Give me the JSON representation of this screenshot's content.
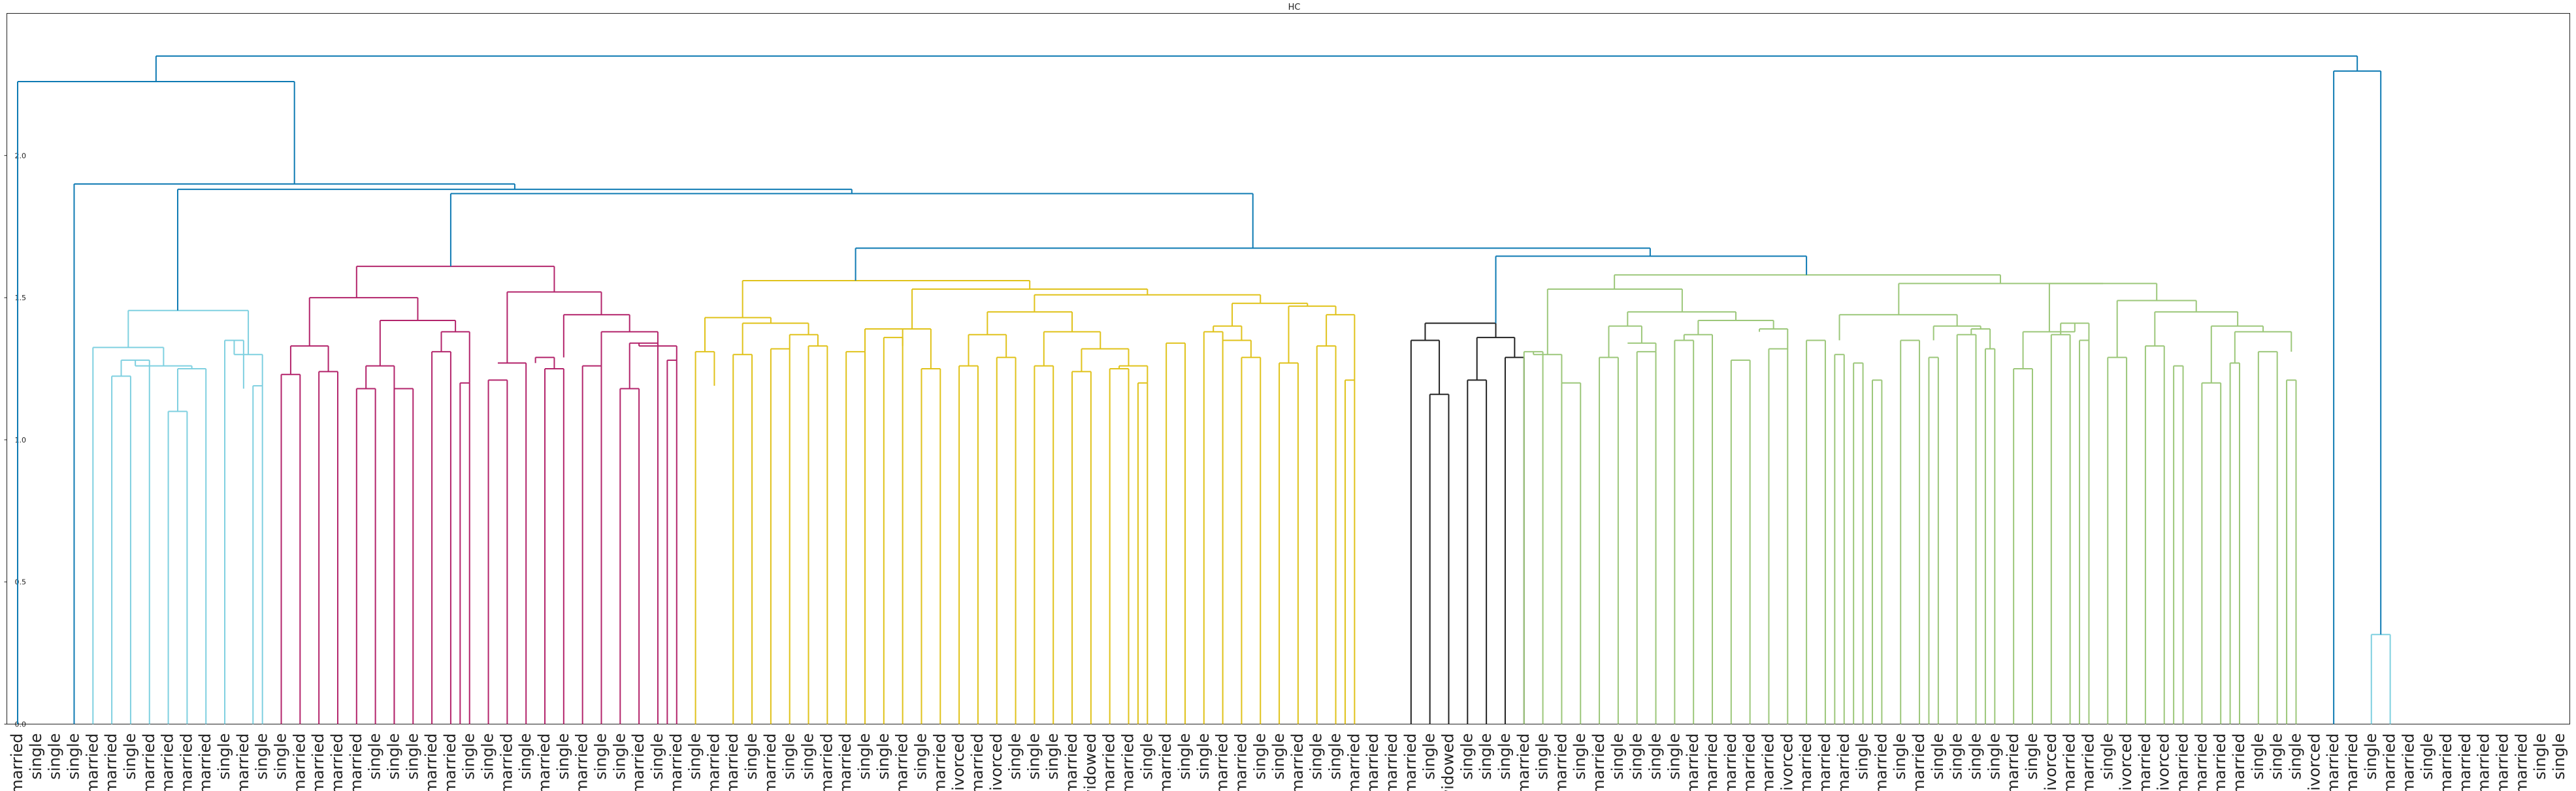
{
  "chart_data": {
    "type": "dendrogram",
    "title": "HC",
    "xlabel": "",
    "ylabel": "",
    "ylim": [
      0,
      2.5
    ],
    "yticks": [
      "0.0",
      "0.5",
      "1.0",
      "1.5",
      "2.0"
    ],
    "leaf_labels": [
      "married",
      "single",
      "single",
      "single",
      "married",
      "married",
      "single",
      "married",
      "married",
      "married",
      "married",
      "single",
      "married",
      "single",
      "single",
      "married",
      "married",
      "married",
      "married",
      "single",
      "single",
      "single",
      "married",
      "married",
      "single",
      "single",
      "married",
      "single",
      "married",
      "single",
      "married",
      "single",
      "single",
      "married",
      "single",
      "married",
      "single",
      "married",
      "married",
      "single",
      "married",
      "single",
      "single",
      "married",
      "married",
      "single",
      "single",
      "married",
      "single",
      "married",
      "divorced",
      "married",
      "divorced",
      "single",
      "single",
      "single",
      "married",
      "widowed",
      "married",
      "married",
      "single",
      "married",
      "single",
      "single",
      "married",
      "married",
      "single",
      "single",
      "married",
      "single",
      "single",
      "married",
      "married",
      "married",
      "married",
      "single",
      "widowed",
      "single",
      "single",
      "single",
      "married",
      "single",
      "married",
      "single",
      "married",
      "single",
      "single",
      "single",
      "single",
      "married",
      "married",
      "married",
      "married",
      "married",
      "divorced",
      "married",
      "married",
      "married",
      "single",
      "married",
      "single",
      "married",
      "single",
      "single",
      "single",
      "single",
      "married",
      "single",
      "divorced",
      "married",
      "married",
      "single",
      "divorced",
      "married",
      "divorced",
      "married",
      "married",
      "married",
      "married",
      "single",
      "single",
      "single",
      "divorced",
      "married",
      "married",
      "single",
      "married",
      "married",
      "single",
      "married",
      "married",
      "married",
      "married",
      "married",
      "single",
      "single"
    ],
    "segments": [
      {
        "color": "#0e7ab3",
        "links": [
          [
            0,
            2.3633,
            9.2,
            2.3633
          ],
          [
            14,
            2.5088,
            187.8,
            2.5088
          ],
          [
            9.2,
            2.3633,
            9.2,
            2.5088
          ],
          [
            187.8,
            2.5088,
            187.8,
            2.5088
          ],
          [
            0,
            0,
            0,
            2.3633
          ],
          [
            4,
            2.1067,
            4,
            2.3633
          ],
          [
            4,
            2.1067,
            54.3,
            2.1067
          ],
          [
            54.3,
            2.1067,
            54.3,
            2.3633
          ],
          [
            14.8,
            1.9005,
            41.2,
            1.9005
          ],
          [
            14.8,
            1.9005,
            14.8,
            2.1067
          ],
          [
            41.2,
            1.9005,
            41.2,
            2.0983
          ],
          [
            9.2,
            1.9005,
            9.2,
            1.4548
          ],
          [
            9.2,
            1.9005,
            14.8,
            1.9005
          ],
          [
            14.8,
            1.8808,
            14.8,
            1.8808
          ],
          [
            34.7,
            1.8808,
            34.7,
            1.8657
          ],
          [
            54.3,
            1.8808,
            54.3,
            1.8657
          ],
          [
            34.7,
            1.8808,
            66.7,
            1.8808
          ],
          [
            26,
            1.8657,
            26,
            1.6065
          ],
          [
            26,
            1.8657,
            78.7,
            1.8657
          ],
          [
            78.7,
            1.8657,
            78.7,
            1.6741
          ],
          [
            59,
            1.6741,
            59,
            1.5581
          ],
          [
            59,
            1.6741,
            122.7,
            1.6741
          ],
          [
            122.7,
            1.6741,
            122.7,
            1.6467
          ],
          [
            104.3,
            1.6467,
            104.3,
            1.4124
          ],
          [
            104.3,
            1.6467,
            136.3,
            1.6467
          ],
          [
            136.3,
            1.6467,
            136.3,
            1.5762
          ],
          [
            170.4,
            2.2972,
            170.4,
            0.3151
          ],
          [
            170.4,
            2.2972,
            187.8,
            2.2972
          ],
          [
            187.8,
            2.2972,
            187.8,
            0
          ],
          [
            187.8,
            2.5088,
            187.8,
            2.2972
          ]
        ]
      }
    ]
  }
}
